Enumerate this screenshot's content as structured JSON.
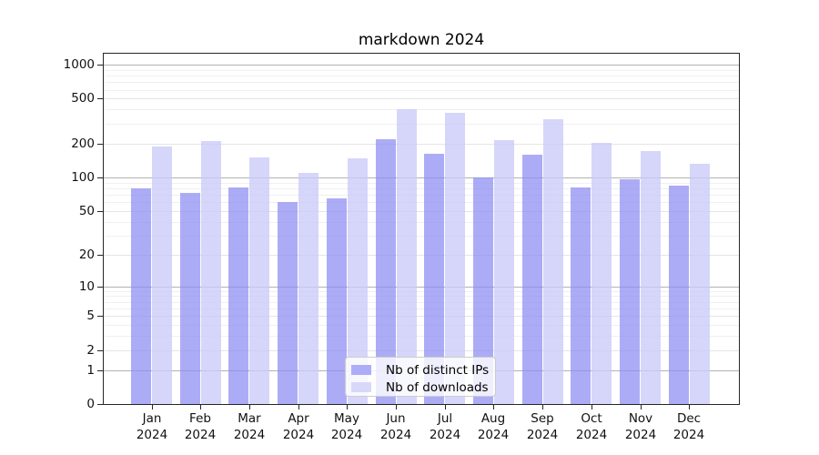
{
  "title": "markdown 2024",
  "chart_data": {
    "type": "bar",
    "title": "markdown 2024",
    "categories": [
      "Jan 2024",
      "Feb 2024",
      "Mar 2024",
      "Apr 2024",
      "May 2024",
      "Jun 2024",
      "Jul 2024",
      "Aug 2024",
      "Sep 2024",
      "Oct 2024",
      "Nov 2024",
      "Dec 2024"
    ],
    "series": [
      {
        "name": "Nb of distinct IPs",
        "color": "#adadf7",
        "fill": "rgba(140,140,242,0.72)",
        "values": [
          79,
          73,
          82,
          60,
          65,
          220,
          163,
          99,
          158,
          82,
          96,
          85
        ]
      },
      {
        "name": "Nb of downloads",
        "color": "#d8d8fa",
        "fill": "rgba(203,203,250,0.78)",
        "values": [
          190,
          212,
          150,
          110,
          148,
          400,
          372,
          213,
          330,
          203,
          172,
          131
        ]
      }
    ],
    "xlabel": "",
    "ylabel": "",
    "yscale": "log1p",
    "yticks": [
      0,
      1,
      2,
      5,
      10,
      20,
      50,
      100,
      200,
      500,
      1000
    ],
    "minor_yticks": [
      3,
      4,
      6,
      7,
      8,
      9,
      30,
      40,
      60,
      70,
      80,
      90,
      300,
      400,
      600,
      700,
      800,
      900
    ],
    "ylim": [
      0,
      1250
    ],
    "grid": true,
    "legend_position": "lower center"
  }
}
